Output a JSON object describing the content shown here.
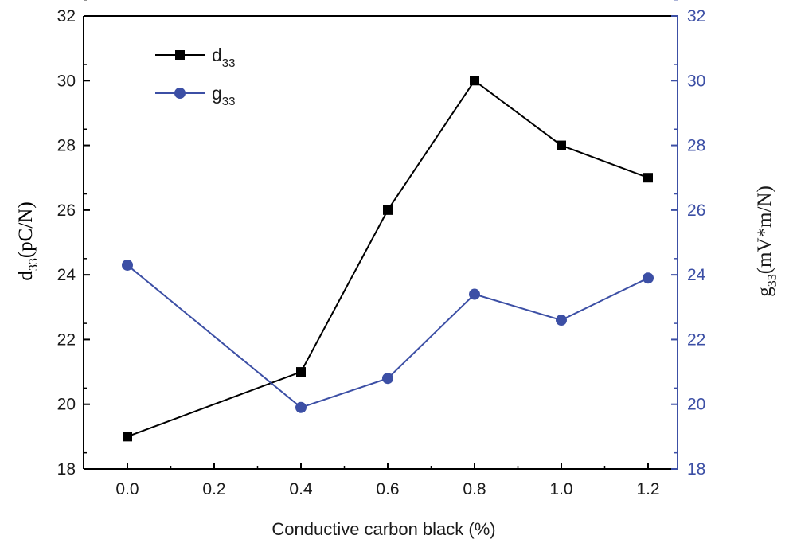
{
  "chart_data": {
    "type": "line",
    "xlabel": "Conductive carbon black (%)",
    "x": [
      0.0,
      0.4,
      0.6,
      0.8,
      1.0,
      1.2
    ],
    "x_ticks": [
      "0.0",
      "0.2",
      "0.4",
      "0.6",
      "0.8",
      "1.0",
      "1.2"
    ],
    "xtick_values": [
      0,
      0.2,
      0.4,
      0.6,
      0.8,
      1.0,
      1.2
    ],
    "x_positions": [
      0,
      2,
      3,
      4,
      5,
      6
    ],
    "y_left": {
      "label_main": "d",
      "label_sub": "33",
      "label_rest": "(pC/N)",
      "ylim": [
        18,
        32
      ],
      "ticks": [
        18,
        20,
        22,
        24,
        26,
        28,
        30,
        32
      ],
      "color": "#000000"
    },
    "y_right": {
      "label_main": "g",
      "label_sub": "33",
      "label_rest": "(mV*m/N)",
      "ylim": [
        18,
        32
      ],
      "ticks": [
        18,
        20,
        22,
        24,
        26,
        28,
        30,
        32
      ],
      "color": "#3c4fa5"
    },
    "series": [
      {
        "name_main": "d",
        "name_sub": "33",
        "axis": "left",
        "marker": "square",
        "color": "#000000",
        "values": [
          19.0,
          21.0,
          26.0,
          30.0,
          28.0,
          27.0
        ]
      },
      {
        "name_main": "g",
        "name_sub": "33",
        "axis": "right",
        "marker": "circle",
        "color": "#3c4fa5",
        "values": [
          24.3,
          19.9,
          20.8,
          23.4,
          22.6,
          23.9
        ]
      }
    ],
    "legend": "top-left",
    "grid": false
  }
}
